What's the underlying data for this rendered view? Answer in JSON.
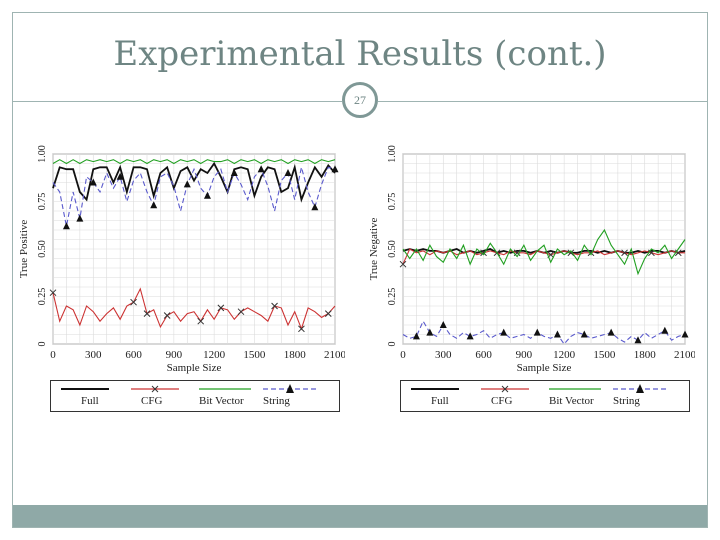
{
  "slide": {
    "title": "Experimental Results (cont.)",
    "page_number": "27"
  },
  "colors": {
    "accent": "#8fa9a7",
    "title": "#6e8583",
    "full": "#111111",
    "cfg": "#cc3333",
    "bitvector": "#22a022",
    "string": "#5a5acc"
  },
  "legend": {
    "full": "Full",
    "cfg": "CFG",
    "bitvector": "Bit Vector",
    "string": "String"
  },
  "chart_data": [
    {
      "type": "line",
      "xlabel": "Sample Size",
      "ylabel": "True Positive",
      "xlim": [
        0,
        2100
      ],
      "ylim": [
        0,
        1
      ],
      "xticks": [
        "0",
        "300",
        "600",
        "900",
        "1200",
        "1500",
        "1800",
        "2100"
      ],
      "yticks": [
        "0",
        "0.25",
        "0.50",
        "0.75",
        "1.00"
      ],
      "grid": true,
      "legend_position": "below",
      "x": [
        0,
        50,
        100,
        150,
        200,
        250,
        300,
        350,
        400,
        450,
        500,
        550,
        600,
        650,
        700,
        750,
        800,
        850,
        900,
        950,
        1000,
        1050,
        1100,
        1150,
        1200,
        1250,
        1300,
        1350,
        1400,
        1450,
        1500,
        1550,
        1600,
        1650,
        1700,
        1750,
        1800,
        1850,
        1900,
        1950,
        2000,
        2050,
        2100
      ],
      "series": [
        {
          "name": "Full",
          "values": [
            0.82,
            0.93,
            0.92,
            0.92,
            0.8,
            0.76,
            0.92,
            0.93,
            0.93,
            0.85,
            0.93,
            0.8,
            0.93,
            0.93,
            0.92,
            0.78,
            0.9,
            0.93,
            0.82,
            0.91,
            0.93,
            0.86,
            0.92,
            0.9,
            0.95,
            0.88,
            0.8,
            0.92,
            0.93,
            0.92,
            0.78,
            0.88,
            0.93,
            0.92,
            0.8,
            0.82,
            0.93,
            0.76,
            0.85,
            0.93,
            0.88,
            0.94,
            0.9
          ]
        },
        {
          "name": "CFG",
          "values": [
            0.27,
            0.12,
            0.2,
            0.18,
            0.1,
            0.2,
            0.17,
            0.12,
            0.16,
            0.19,
            0.13,
            0.2,
            0.22,
            0.29,
            0.16,
            0.18,
            0.09,
            0.15,
            0.17,
            0.12,
            0.16,
            0.17,
            0.12,
            0.18,
            0.13,
            0.19,
            0.18,
            0.13,
            0.17,
            0.19,
            0.17,
            0.15,
            0.12,
            0.2,
            0.19,
            0.1,
            0.17,
            0.08,
            0.19,
            0.17,
            0.14,
            0.16,
            0.2
          ]
        },
        {
          "name": "Bit Vector",
          "values": [
            0.95,
            0.97,
            0.95,
            0.97,
            0.95,
            0.97,
            0.96,
            0.97,
            0.96,
            0.97,
            0.95,
            0.97,
            0.96,
            0.97,
            0.95,
            0.97,
            0.96,
            0.97,
            0.95,
            0.97,
            0.96,
            0.97,
            0.95,
            0.97,
            0.96,
            0.96,
            0.97,
            0.95,
            0.97,
            0.96,
            0.97,
            0.95,
            0.97,
            0.96,
            0.97,
            0.95,
            0.97,
            0.96,
            0.97,
            0.95,
            0.97,
            0.96,
            0.97
          ]
        },
        {
          "name": "String",
          "values": [
            0.85,
            0.8,
            0.62,
            0.8,
            0.66,
            0.88,
            0.85,
            0.8,
            0.9,
            0.82,
            0.88,
            0.75,
            0.86,
            0.9,
            0.8,
            0.73,
            0.88,
            0.9,
            0.83,
            0.7,
            0.84,
            0.92,
            0.82,
            0.78,
            0.88,
            0.92,
            0.8,
            0.9,
            0.84,
            0.76,
            0.88,
            0.92,
            0.83,
            0.7,
            0.86,
            0.9,
            0.76,
            0.93,
            0.8,
            0.72,
            0.84,
            0.93,
            0.92
          ]
        }
      ]
    },
    {
      "type": "line",
      "xlabel": "Sample Size",
      "ylabel": "True Negative",
      "xlim": [
        0,
        2100
      ],
      "ylim": [
        0,
        1
      ],
      "xticks": [
        "0",
        "300",
        "600",
        "900",
        "1200",
        "1500",
        "1800",
        "2100"
      ],
      "yticks": [
        "0",
        "0.25",
        "0.50",
        "0.75",
        "1.00"
      ],
      "grid": true,
      "legend_position": "below",
      "x": [
        0,
        50,
        100,
        150,
        200,
        250,
        300,
        350,
        400,
        450,
        500,
        550,
        600,
        650,
        700,
        750,
        800,
        850,
        900,
        950,
        1000,
        1050,
        1100,
        1150,
        1200,
        1250,
        1300,
        1350,
        1400,
        1450,
        1500,
        1550,
        1600,
        1650,
        1700,
        1750,
        1800,
        1850,
        1900,
        1950,
        2000,
        2050,
        2100
      ],
      "series": [
        {
          "name": "Full",
          "values": [
            0.49,
            0.5,
            0.49,
            0.5,
            0.49,
            0.49,
            0.48,
            0.49,
            0.5,
            0.48,
            0.49,
            0.48,
            0.49,
            0.5,
            0.48,
            0.49,
            0.48,
            0.49,
            0.49,
            0.48,
            0.49,
            0.48,
            0.49,
            0.48,
            0.49,
            0.48,
            0.48,
            0.49,
            0.49,
            0.48,
            0.49,
            0.48,
            0.49,
            0.48,
            0.48,
            0.49,
            0.48,
            0.49,
            0.49,
            0.48,
            0.49,
            0.48,
            0.49
          ]
        },
        {
          "name": "CFG",
          "values": [
            0.42,
            0.5,
            0.48,
            0.49,
            0.47,
            0.49,
            0.48,
            0.49,
            0.47,
            0.48,
            0.49,
            0.47,
            0.48,
            0.49,
            0.48,
            0.47,
            0.49,
            0.48,
            0.48,
            0.47,
            0.49,
            0.48,
            0.47,
            0.48,
            0.49,
            0.48,
            0.47,
            0.48,
            0.48,
            0.49,
            0.47,
            0.48,
            0.49,
            0.48,
            0.47,
            0.48,
            0.49,
            0.48,
            0.47,
            0.48,
            0.49,
            0.48,
            0.48
          ]
        },
        {
          "name": "Bit Vector",
          "values": [
            0.5,
            0.45,
            0.5,
            0.44,
            0.52,
            0.46,
            0.43,
            0.5,
            0.45,
            0.52,
            0.42,
            0.5,
            0.47,
            0.53,
            0.48,
            0.42,
            0.5,
            0.46,
            0.52,
            0.44,
            0.49,
            0.52,
            0.43,
            0.5,
            0.47,
            0.49,
            0.44,
            0.52,
            0.47,
            0.55,
            0.6,
            0.52,
            0.47,
            0.42,
            0.5,
            0.37,
            0.45,
            0.5,
            0.48,
            0.52,
            0.45,
            0.5,
            0.55
          ]
        },
        {
          "name": "String",
          "values": [
            0.05,
            0.03,
            0.04,
            0.12,
            0.06,
            0.04,
            0.1,
            0.05,
            0.03,
            0.06,
            0.04,
            0.05,
            0.07,
            0.03,
            0.05,
            0.06,
            0.03,
            0.04,
            0.05,
            0.03,
            0.06,
            0.04,
            0.03,
            0.05,
            0.0,
            0.04,
            0.06,
            0.05,
            0.03,
            0.04,
            0.05,
            0.06,
            0.03,
            0.01,
            0.04,
            0.02,
            0.06,
            0.03,
            0.05,
            0.07,
            0.02,
            0.04,
            0.05
          ]
        }
      ]
    }
  ]
}
